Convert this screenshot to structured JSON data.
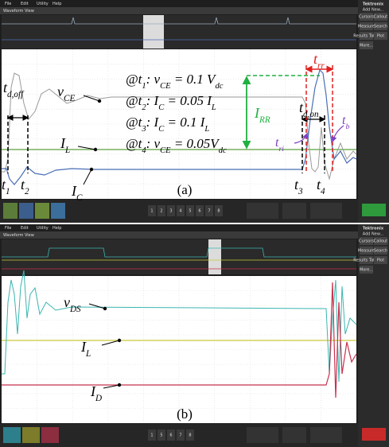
{
  "panel_a": {
    "menu": [
      "File",
      "Edit",
      "Utility",
      "Help"
    ],
    "view_title": "Waveform View",
    "brand": "Tektronix",
    "add_new": "Add New...",
    "sidebar": [
      "Cursors",
      "Callout",
      "Measure",
      "Search",
      "Results Table",
      "Plot",
      "More..."
    ],
    "channel_buttons": [
      "1",
      "2",
      "3",
      "4",
      "5",
      "6",
      "7",
      "8"
    ],
    "caption": "(a)",
    "labels": {
      "td_off": [
        "t",
        "d,off"
      ],
      "v_ce": [
        "v",
        "CE"
      ],
      "i_l": [
        "I",
        "L"
      ],
      "i_c": [
        "I",
        "C"
      ],
      "t1": [
        "t",
        "1"
      ],
      "t2": [
        "t",
        "2"
      ],
      "t3": [
        "t",
        "3"
      ],
      "t4": [
        "t",
        "4"
      ],
      "i_rr": [
        "I",
        "RR"
      ],
      "t_rr": [
        "t",
        "rr"
      ],
      "td_on": [
        "t",
        "d,on"
      ],
      "t_ri": [
        "t",
        "ri"
      ],
      "t_b": [
        "t",
        "b"
      ]
    },
    "conditions": [
      [
        "@t",
        "1",
        ": v",
        "CE",
        " = 0.1 V",
        "dc"
      ],
      [
        "@t",
        "2",
        ": I",
        "C",
        " = 0.05 I",
        "L"
      ],
      [
        "@t",
        "3",
        ": I",
        "C",
        " =   0.1 I",
        "L"
      ],
      [
        "@t",
        "4",
        ": v",
        "CE",
        " = 0.05V",
        "dc"
      ]
    ]
  },
  "panel_b": {
    "menu": [
      "File",
      "Edit",
      "Utility",
      "Help"
    ],
    "view_title": "Waveform View",
    "brand": "Tektronix",
    "add_new": "Add New...",
    "sidebar": [
      "Cursors",
      "Callout",
      "Measure",
      "Search",
      "Results Table",
      "Plot",
      "More..."
    ],
    "channel_buttons": [
      "1",
      "5",
      "6",
      "7",
      "8"
    ],
    "caption": "(b)",
    "labels": {
      "v_ds": [
        "v",
        "DS"
      ],
      "i_l": [
        "I",
        "L"
      ],
      "i_d": [
        "I",
        "D"
      ]
    }
  }
}
